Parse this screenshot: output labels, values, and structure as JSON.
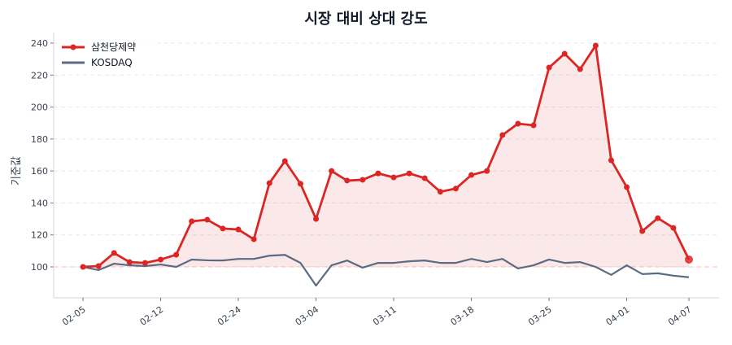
{
  "chart_data": {
    "type": "line",
    "title": "시장 대비 상대 강도",
    "xlabel": "",
    "ylabel": "기준값",
    "ylim": [
      80,
      246
    ],
    "yticks": [
      100,
      120,
      140,
      160,
      180,
      200,
      220,
      240
    ],
    "xtick_labels": [
      {
        "index": 0,
        "label": "02-05"
      },
      {
        "index": 5,
        "label": "02-12"
      },
      {
        "index": 10,
        "label": "02-24"
      },
      {
        "index": 15,
        "label": "03-04"
      },
      {
        "index": 20,
        "label": "03-11"
      },
      {
        "index": 25,
        "label": "03-18"
      },
      {
        "index": 30,
        "label": "03-25"
      },
      {
        "index": 35,
        "label": "04-01"
      },
      {
        "index": 39,
        "label": "04-07"
      }
    ],
    "baseline": 100,
    "grid": "horizontal dashed",
    "legend_position": "top-left",
    "series": [
      {
        "name": "삼천당제약",
        "color": "#dc2626",
        "values": [
          100,
          100.5,
          108.7,
          103,
          102.5,
          104.6,
          107.6,
          128.5,
          129.5,
          124,
          123.4,
          117.3,
          152.4,
          166.2,
          152,
          130,
          160,
          154,
          154.5,
          158.5,
          156,
          158.5,
          155.5,
          147,
          149,
          157.5,
          160,
          182.5,
          189.6,
          188.6,
          224.7,
          233.4,
          223.7,
          238.5,
          166.7,
          149.9,
          122.4,
          130.5,
          124.4,
          104.6
        ]
      },
      {
        "name": "KOSDAQ",
        "color": "#5b6b82",
        "values": [
          100,
          98,
          102,
          101,
          100.5,
          101.5,
          100,
          104.6,
          104.1,
          104,
          105,
          105,
          107,
          107.5,
          102.5,
          88.3,
          101,
          104,
          99.5,
          102.5,
          102.5,
          103.5,
          104,
          102.5,
          102.5,
          105,
          103,
          105,
          99,
          101,
          104.6,
          102.5,
          103,
          100,
          95,
          101,
          95.5,
          96,
          94.5,
          93.5
        ]
      }
    ]
  }
}
